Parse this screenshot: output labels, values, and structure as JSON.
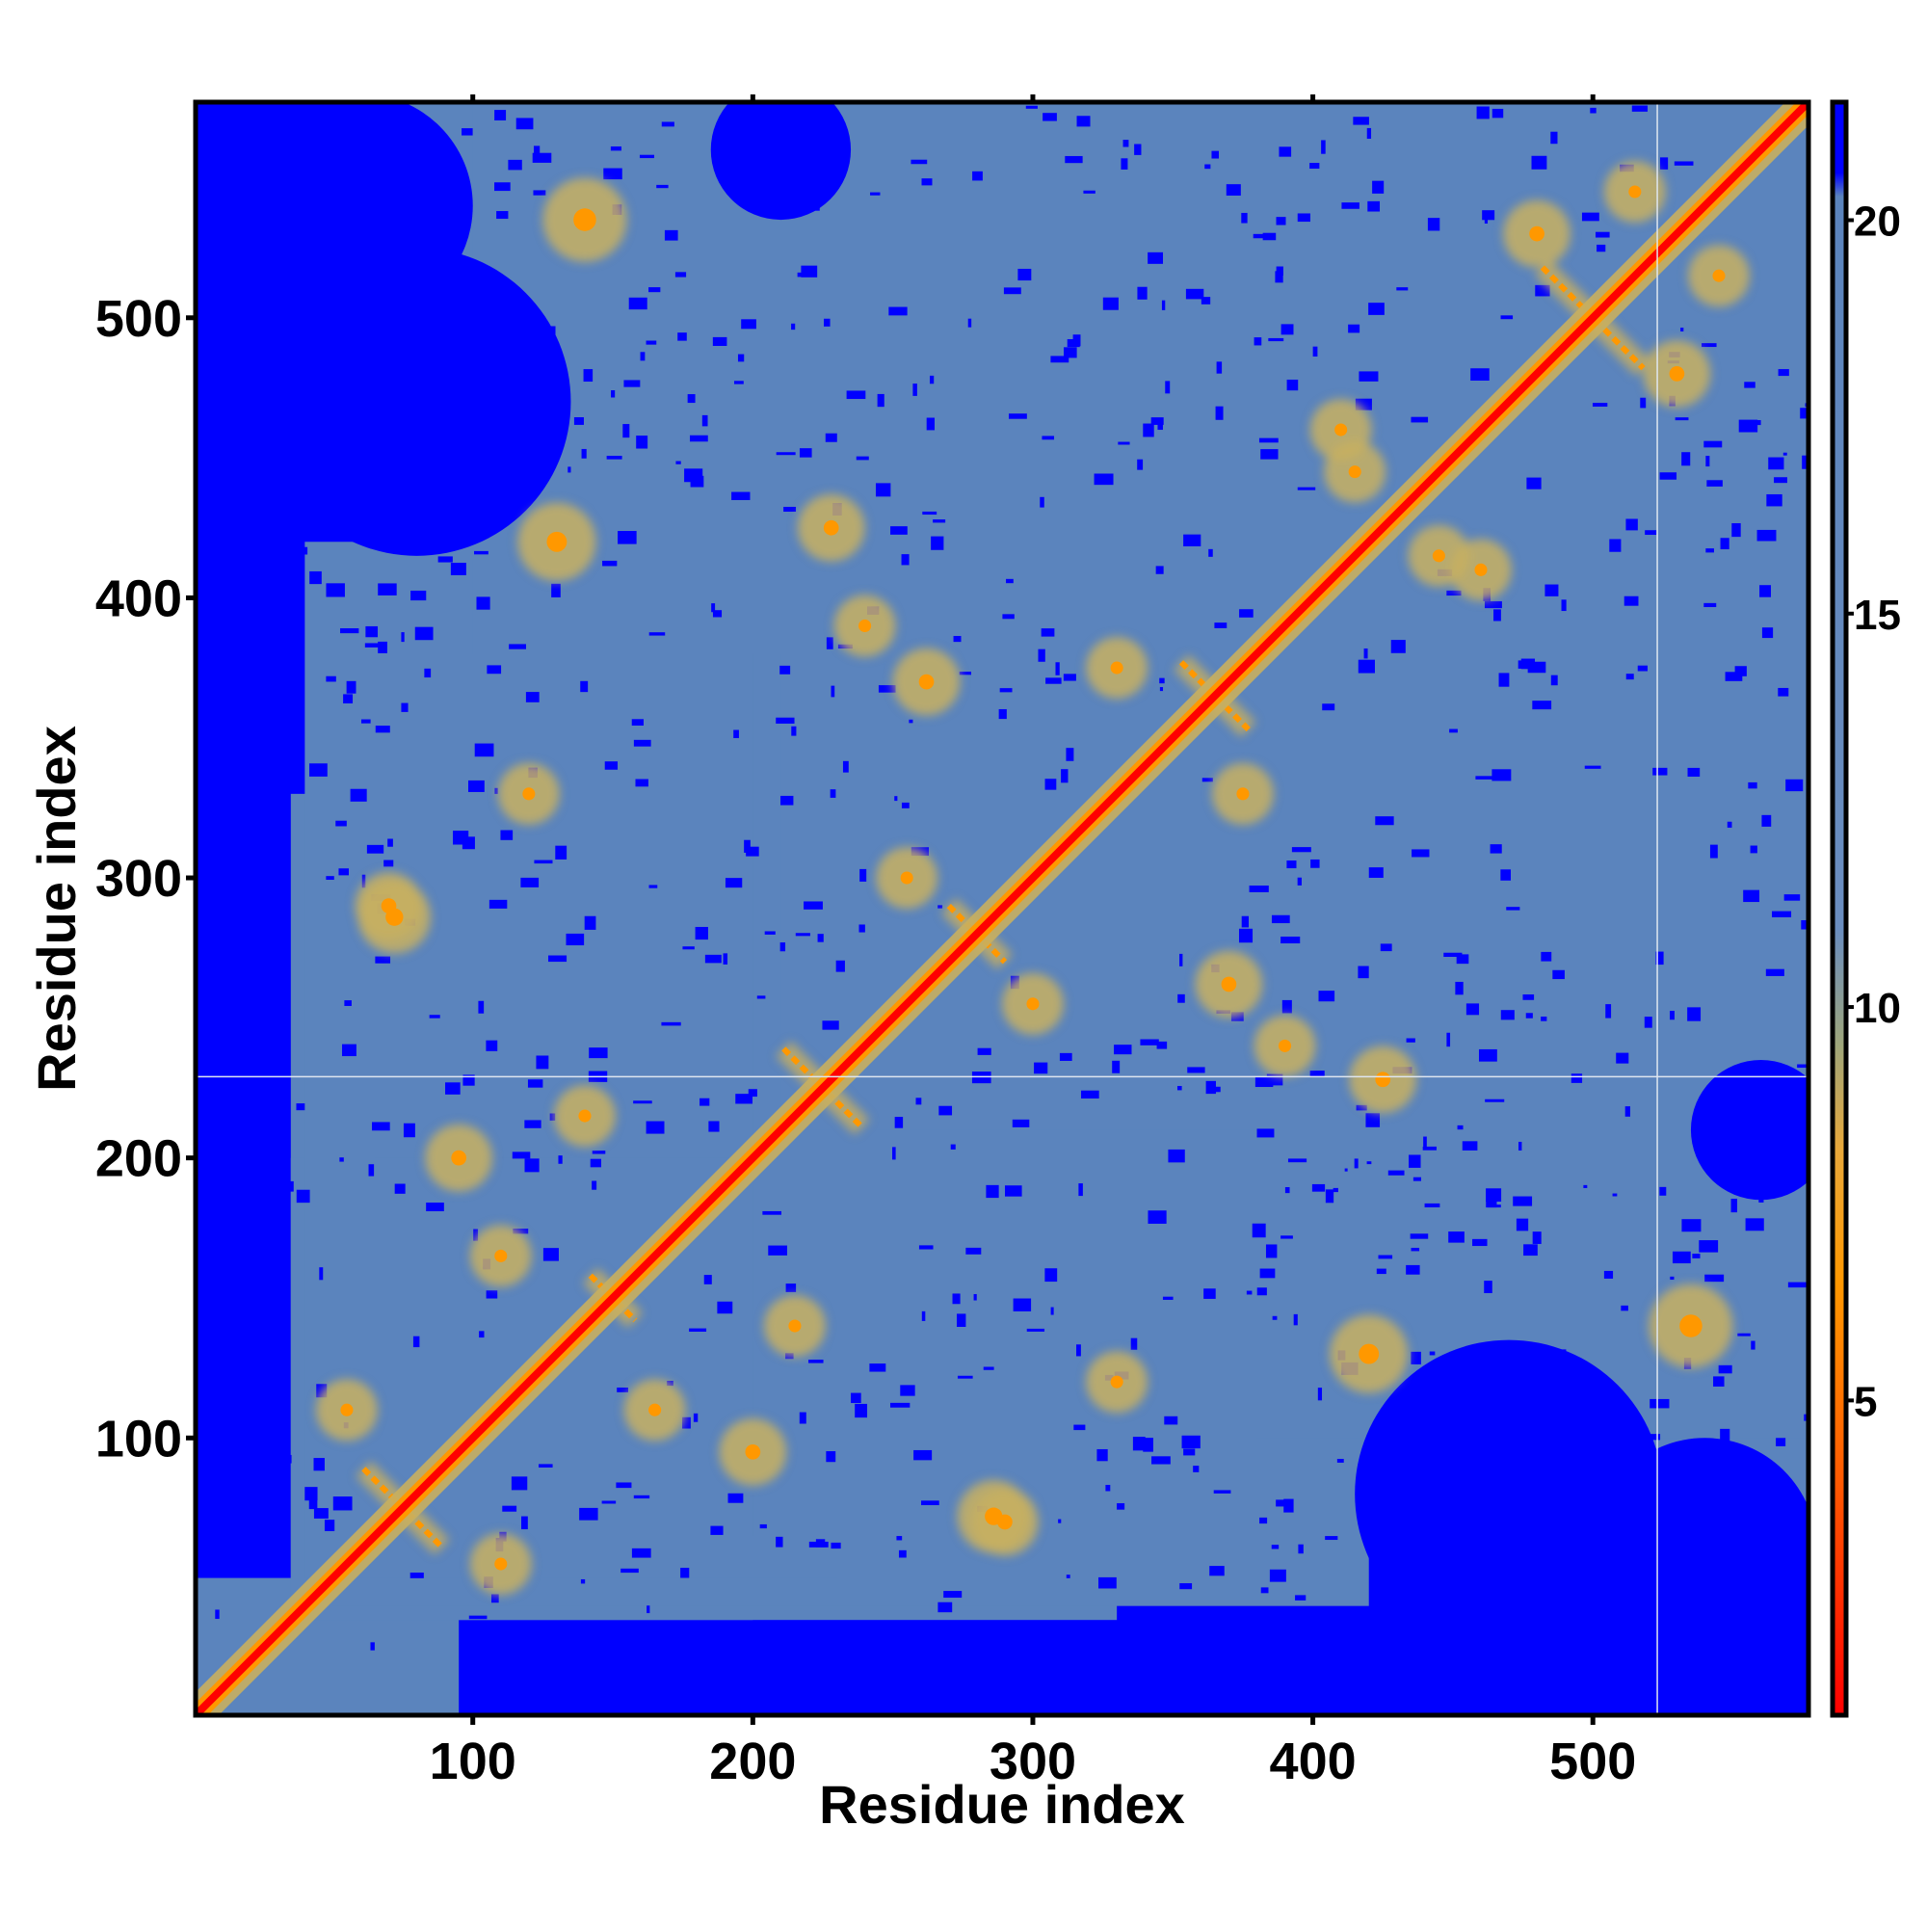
{
  "chart_data": {
    "type": "heatmap",
    "title": "",
    "xlabel": "Residue index",
    "ylabel": "Residue index",
    "xlim": [
      1,
      577
    ],
    "ylim": [
      1,
      577
    ],
    "x_ticks": [
      100,
      200,
      300,
      400,
      500
    ],
    "y_ticks": [
      100,
      200,
      300,
      400,
      500
    ],
    "x_ticks_top": [
      100,
      200,
      300,
      400,
      500
    ],
    "colorbar": {
      "ticks": [
        5,
        10,
        15,
        20
      ],
      "range": [
        1,
        21.5
      ],
      "stops": [
        {
          "value": 1,
          "color": "#ff0000"
        },
        {
          "value": 4,
          "color": "#ff5a00"
        },
        {
          "value": 6.5,
          "color": "#ff9800"
        },
        {
          "value": 8.2,
          "color": "#e8a83a"
        },
        {
          "value": 9.5,
          "color": "#9fa67a"
        },
        {
          "value": 11,
          "color": "#6a8dbf"
        },
        {
          "value": 20.3,
          "color": "#5b84bd"
        },
        {
          "value": 20.6,
          "color": "#0000ff"
        },
        {
          "value": 21.5,
          "color": "#0000ff"
        }
      ]
    },
    "colors": {
      "far": "#0000ff",
      "mid": "#5b84bd",
      "near": "#ff0000",
      "contact": "#ff9800",
      "halo": "#c8b060"
    },
    "gap_lines": {
      "vertical_x": 523,
      "horizontal_y": 229
    },
    "regions": [
      {
        "x0": 1,
        "x1": 95,
        "y0": 1,
        "y1": 50
      },
      {
        "x0": 35,
        "x1": 200,
        "y0": 35,
        "y1": 330
      },
      {
        "x0": 35,
        "x1": 330,
        "y0": 35,
        "y1": 200
      },
      {
        "x0": 50,
        "x1": 420,
        "y0": 40,
        "y1": 230
      },
      {
        "x0": 40,
        "x1": 230,
        "y0": 50,
        "y1": 420
      },
      {
        "x0": 65,
        "x1": 577,
        "y0": 200,
        "y1": 577
      },
      {
        "x0": 200,
        "x1": 577,
        "y0": 65,
        "y1": 577
      },
      {
        "x0": 210,
        "x1": 577,
        "y0": 210,
        "y1": 577
      },
      {
        "x0": 380,
        "x1": 577,
        "y0": 100,
        "y1": 230
      },
      {
        "x0": 100,
        "x1": 230,
        "y0": 380,
        "y1": 577
      }
    ],
    "holes": [
      {
        "x": 470,
        "y": 80,
        "r": 55
      },
      {
        "x": 540,
        "y": 60,
        "r": 40
      },
      {
        "x": 80,
        "y": 470,
        "r": 55
      },
      {
        "x": 60,
        "y": 540,
        "r": 40
      },
      {
        "x": 560,
        "y": 210,
        "r": 25
      },
      {
        "x": 210,
        "y": 560,
        "r": 25
      }
    ],
    "contacts": [
      {
        "x": 72,
        "y": 286,
        "r": 7
      },
      {
        "x": 286,
        "y": 72,
        "r": 7
      },
      {
        "x": 130,
        "y": 420,
        "r": 8
      },
      {
        "x": 420,
        "y": 130,
        "r": 8
      },
      {
        "x": 228,
        "y": 425,
        "r": 6
      },
      {
        "x": 425,
        "y": 228,
        "r": 6
      },
      {
        "x": 140,
        "y": 535,
        "r": 9
      },
      {
        "x": 535,
        "y": 140,
        "r": 9
      },
      {
        "x": 262,
        "y": 370,
        "r": 6
      },
      {
        "x": 370,
        "y": 262,
        "r": 6
      },
      {
        "x": 290,
        "y": 70,
        "r": 6
      },
      {
        "x": 70,
        "y": 290,
        "r": 6
      },
      {
        "x": 200,
        "y": 95,
        "r": 6
      },
      {
        "x": 95,
        "y": 200,
        "r": 6
      },
      {
        "x": 110,
        "y": 55,
        "r": 5
      },
      {
        "x": 55,
        "y": 110,
        "r": 5
      },
      {
        "x": 330,
        "y": 120,
        "r": 5
      },
      {
        "x": 120,
        "y": 330,
        "r": 5
      },
      {
        "x": 415,
        "y": 445,
        "r": 5
      },
      {
        "x": 445,
        "y": 415,
        "r": 5
      },
      {
        "x": 460,
        "y": 410,
        "r": 5
      },
      {
        "x": 410,
        "y": 460,
        "r": 5
      },
      {
        "x": 530,
        "y": 480,
        "r": 6
      },
      {
        "x": 480,
        "y": 530,
        "r": 6
      },
      {
        "x": 545,
        "y": 515,
        "r": 5
      },
      {
        "x": 515,
        "y": 545,
        "r": 5
      },
      {
        "x": 300,
        "y": 255,
        "r": 5
      },
      {
        "x": 255,
        "y": 300,
        "r": 5
      },
      {
        "x": 375,
        "y": 330,
        "r": 5
      },
      {
        "x": 330,
        "y": 375,
        "r": 5
      },
      {
        "x": 215,
        "y": 140,
        "r": 5
      },
      {
        "x": 140,
        "y": 215,
        "r": 5
      },
      {
        "x": 165,
        "y": 110,
        "r": 5
      },
      {
        "x": 110,
        "y": 165,
        "r": 5
      },
      {
        "x": 390,
        "y": 240,
        "r": 5
      },
      {
        "x": 240,
        "y": 390,
        "r": 5
      }
    ],
    "antidiagonal_crosses": [
      {
        "c": 75,
        "half": 14
      },
      {
        "c": 225,
        "half": 14
      },
      {
        "c": 500,
        "half": 18
      },
      {
        "c": 365,
        "half": 12
      },
      {
        "c": 280,
        "half": 10
      },
      {
        "c": 150,
        "half": 8
      }
    ]
  }
}
